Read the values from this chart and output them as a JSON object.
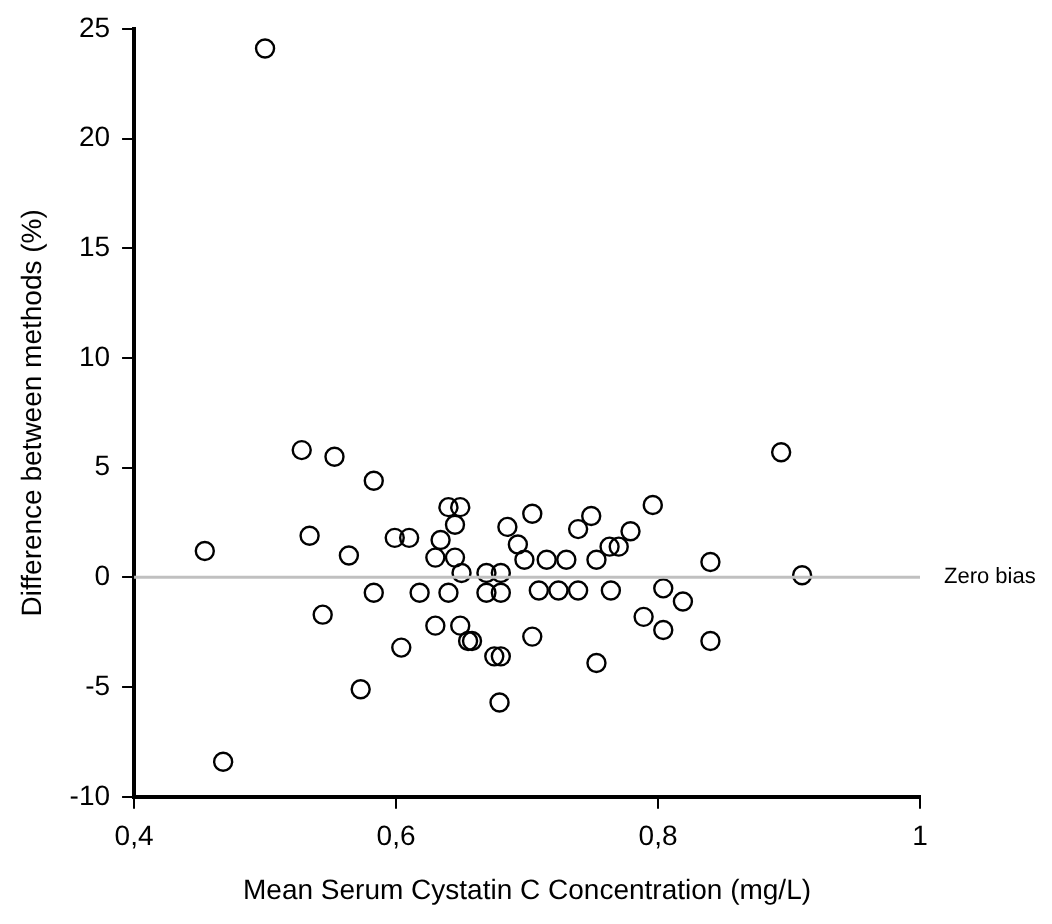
{
  "chart_data": {
    "type": "scatter",
    "xlabel": "Mean Serum Cystatin C Concentration (mg/L)",
    "ylabel": "Difference between methods (%)",
    "xlim": [
      0.4,
      1
    ],
    "xticks": [
      {
        "value": 0.4,
        "label": "0,4"
      },
      {
        "value": 0.6,
        "label": "0,6"
      },
      {
        "value": 0.8,
        "label": "0,8"
      },
      {
        "value": 1,
        "label": "1"
      }
    ],
    "ylim": [
      -10,
      25
    ],
    "yticks": [
      -10,
      -5,
      0,
      5,
      10,
      15,
      20,
      25
    ],
    "grid": false,
    "legend": false,
    "marker": "circle",
    "ref_lines": [
      {
        "axis": "y",
        "value": 0,
        "label": "Zero bias",
        "color": "#c0c0c0"
      }
    ],
    "series": [
      {
        "color": "#000000",
        "x": [
          0.5,
          0.454,
          0.468,
          0.528,
          0.534,
          0.553,
          0.544,
          0.564,
          0.573,
          0.583,
          0.583,
          0.599,
          0.61,
          0.604,
          0.618,
          0.63,
          0.63,
          0.634,
          0.64,
          0.64,
          0.649,
          0.645,
          0.645,
          0.65,
          0.649,
          0.655,
          0.658,
          0.669,
          0.669,
          0.675,
          0.68,
          0.68,
          0.68,
          0.679,
          0.685,
          0.693,
          0.698,
          0.704,
          0.704,
          0.709,
          0.715,
          0.724,
          0.73,
          0.739,
          0.739,
          0.749,
          0.753,
          0.753,
          0.894,
          0.796,
          0.763,
          0.77,
          0.779,
          0.764,
          0.804,
          0.819,
          0.789,
          0.804,
          0.84,
          0.84,
          0.91
        ],
        "values": [
          24.1,
          1.2,
          -8.4,
          5.8,
          1.9,
          5.5,
          -1.7,
          1,
          -5.1,
          4.4,
          -0.7,
          1.8,
          1.8,
          -3.2,
          -0.7,
          -2.2,
          0.9,
          1.7,
          -0.7,
          3.2,
          3.2,
          2.4,
          0.9,
          0.2,
          -2.2,
          -2.9,
          -2.9,
          0.2,
          -0.7,
          -3.6,
          -3.6,
          0.2,
          -0.7,
          -5.7,
          2.3,
          1.5,
          0.8,
          2.9,
          -2.7,
          -0.6,
          0.8,
          -0.6,
          0.8,
          -0.6,
          2.2,
          2.8,
          0.8,
          -3.9,
          5.7,
          3.3,
          1.4,
          1.4,
          2.1,
          -0.6,
          -0.5,
          -1.1,
          -1.8,
          -2.4,
          0.7,
          -2.9,
          0.1
        ]
      }
    ]
  }
}
